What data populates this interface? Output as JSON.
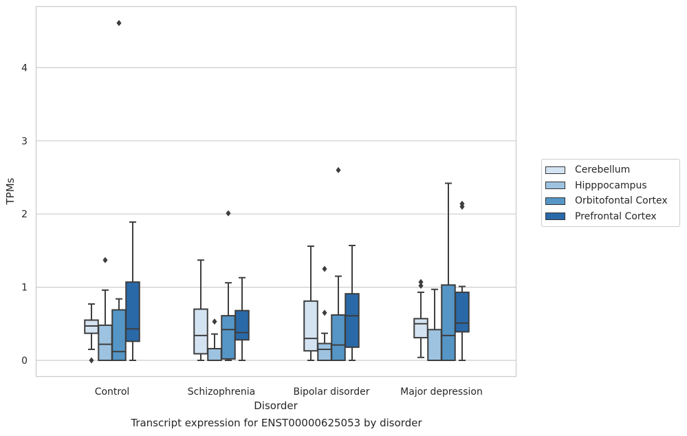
{
  "chart_data": {
    "type": "boxplot",
    "title": "Transcript expression for ENST00000625053 by disorder",
    "xlabel": "Disorder",
    "ylabel": "TPMs",
    "ylim": [
      -0.22,
      4.85
    ],
    "yticks": [
      0,
      1,
      2,
      3,
      4
    ],
    "grid": "horizontal",
    "legend_position": "right",
    "categories": [
      "Control",
      "Schizophrenia",
      "Bipolar disorder",
      "Major depression"
    ],
    "series": [
      {
        "name": "Cerebellum",
        "color": "#d4e3f2",
        "boxes": [
          {
            "whislo": 0.15,
            "q1": 0.37,
            "med": 0.47,
            "q3": 0.55,
            "whishi": 0.77,
            "fliers": [
              0.0
            ]
          },
          {
            "whislo": 0.0,
            "q1": 0.09,
            "med": 0.34,
            "q3": 0.7,
            "whishi": 1.37,
            "fliers": []
          },
          {
            "whislo": 0.0,
            "q1": 0.13,
            "med": 0.3,
            "q3": 0.81,
            "whishi": 1.56,
            "fliers": []
          },
          {
            "whislo": 0.04,
            "q1": 0.31,
            "med": 0.5,
            "q3": 0.57,
            "whishi": 0.93,
            "fliers": [
              1.02,
              1.07
            ]
          }
        ]
      },
      {
        "name": "Hipppocampus",
        "color": "#9ec3e0",
        "boxes": [
          {
            "whislo": 0.0,
            "q1": 0.0,
            "med": 0.22,
            "q3": 0.48,
            "whishi": 0.96,
            "fliers": [
              1.37
            ]
          },
          {
            "whislo": 0.0,
            "q1": 0.0,
            "med": 0.0,
            "q3": 0.16,
            "whishi": 0.36,
            "fliers": [
              0.53
            ]
          },
          {
            "whislo": 0.0,
            "q1": 0.0,
            "med": 0.15,
            "q3": 0.23,
            "whishi": 0.37,
            "fliers": [
              0.65,
              1.25
            ]
          },
          {
            "whislo": 0.0,
            "q1": 0.0,
            "med": 0.0,
            "q3": 0.42,
            "whishi": 0.97,
            "fliers": []
          }
        ]
      },
      {
        "name": "Orbitofontal Cortex",
        "color": "#5596c6",
        "boxes": [
          {
            "whislo": 0.0,
            "q1": 0.0,
            "med": 0.12,
            "q3": 0.69,
            "whishi": 0.84,
            "fliers": [
              4.61
            ]
          },
          {
            "whislo": 0.0,
            "q1": 0.02,
            "med": 0.42,
            "q3": 0.61,
            "whishi": 1.06,
            "fliers": [
              2.01
            ]
          },
          {
            "whislo": 0.0,
            "q1": 0.0,
            "med": 0.21,
            "q3": 0.62,
            "whishi": 1.15,
            "fliers": [
              2.6
            ]
          },
          {
            "whislo": 0.0,
            "q1": 0.0,
            "med": 0.34,
            "q3": 1.03,
            "whishi": 2.42,
            "fliers": []
          }
        ]
      },
      {
        "name": "Prefrontal Cortex",
        "color": "#2a69a8",
        "boxes": [
          {
            "whislo": 0.0,
            "q1": 0.26,
            "med": 0.43,
            "q3": 1.07,
            "whishi": 1.89,
            "fliers": []
          },
          {
            "whislo": 0.0,
            "q1": 0.28,
            "med": 0.38,
            "q3": 0.68,
            "whishi": 1.13,
            "fliers": []
          },
          {
            "whislo": 0.0,
            "q1": 0.18,
            "med": 0.61,
            "q3": 0.91,
            "whishi": 1.57,
            "fliers": []
          },
          {
            "whislo": 0.0,
            "q1": 0.39,
            "med": 0.51,
            "q3": 0.93,
            "whishi": 1.01,
            "fliers": [
              2.1,
              2.14
            ]
          }
        ]
      }
    ]
  }
}
